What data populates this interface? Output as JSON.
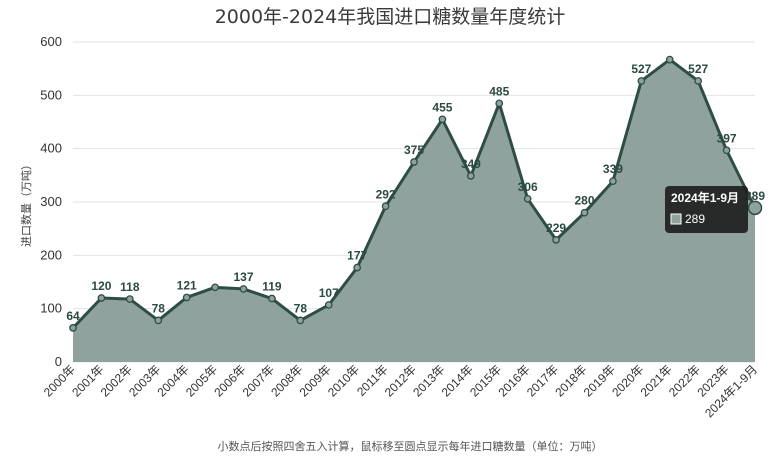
{
  "chart_data": {
    "type": "area",
    "title": "2000年-2024年我国进口糖数量年度统计",
    "ylabel": "进口数量（万吨）",
    "xlabel": "",
    "footnote": "小数点后按照四舍五入计算，鼠标移至圆点显示每年进口糖数量（单位：万吨）",
    "ylim": [
      0,
      600
    ],
    "yticks": [
      "0",
      "100",
      "200",
      "300",
      "400",
      "500",
      "600"
    ],
    "grid": true,
    "categories": [
      "2000年",
      "2001年",
      "2002年",
      "2003年",
      "2004年",
      "2005年",
      "2006年",
      "2007年",
      "2008年",
      "2009年",
      "2010年",
      "2011年",
      "2012年",
      "2013年",
      "2014年",
      "2015年",
      "2016年",
      "2017年",
      "2018年",
      "2019年",
      "2020年",
      "2021年",
      "2022年",
      "2023年",
      "2024年1-9月"
    ],
    "series": [
      {
        "values": [
          64,
          120,
          118,
          78,
          121,
          140,
          137,
          119,
          78,
          107,
          177,
          292,
          375,
          455,
          349,
          485,
          306,
          229,
          280,
          339,
          527,
          567,
          527,
          397,
          289
        ],
        "labels": [
          "64",
          "120",
          "118",
          "78",
          "121",
          "",
          "137",
          "119",
          "78",
          "107",
          "177",
          "292",
          "375",
          "455",
          "349",
          "485",
          "306",
          "229",
          "280",
          "339",
          "527",
          "",
          "527",
          "397",
          "289"
        ]
      }
    ],
    "colors": {
      "area": "#8fa29d",
      "line": "#2d4d46",
      "grid": "#e3e3e3",
      "tooltip_bg": "#1f1f1f",
      "tooltip_swatch": "#8fa29d"
    },
    "tooltip": {
      "title": "2024年1-9月",
      "value": "289",
      "index": 24
    }
  }
}
